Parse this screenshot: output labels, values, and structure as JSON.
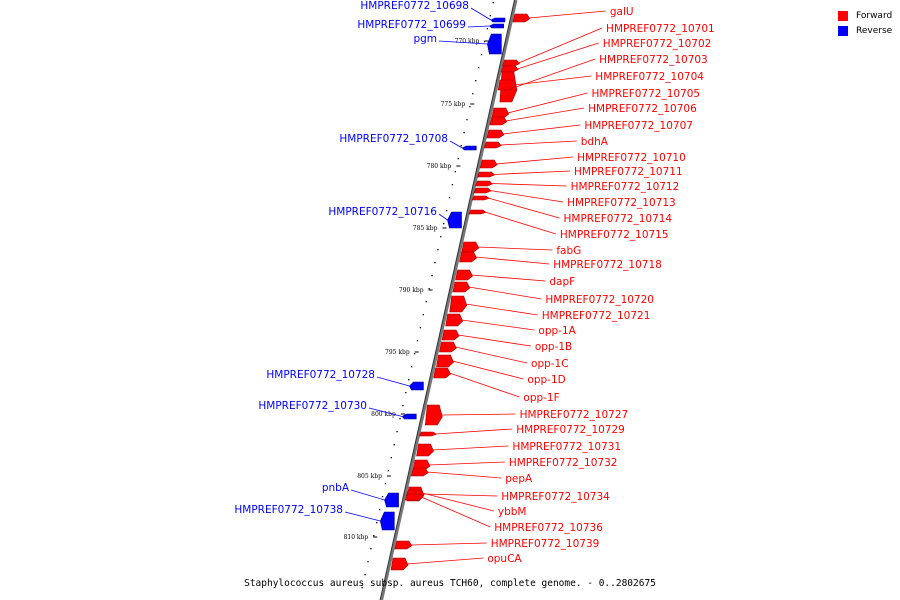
{
  "caption": "Staphylococcus aureus subsp. aureus TCH60, complete genome. - 0..2802675",
  "legend": [
    {
      "label": "Forward",
      "color": "#ff0000"
    },
    {
      "label": "Reverse",
      "color": "#0000ff"
    }
  ],
  "colors": {
    "forward": "#ff0000",
    "reverse": "#0000ff",
    "backbone": "#777777"
  },
  "ticks": [
    "770 kbp",
    "775 kbp",
    "780 kbp",
    "785 kbp",
    "790 kbp",
    "795 kbp",
    "800 kbp",
    "805 kbp",
    "810 kbp"
  ],
  "forward_labels": [
    "galU",
    "HMPREF0772_10701",
    "HMPREF0772_10702",
    "HMPREF0772_10703",
    "HMPREF0772_10704",
    "HMPREF0772_10705",
    "HMPREF0772_10706",
    "HMPREF0772_10707",
    "bdhA",
    "HMPREF0772_10710",
    "HMPREF0772_10711",
    "HMPREF0772_10712",
    "HMPREF0772_10713",
    "HMPREF0772_10714",
    "HMPREF0772_10715",
    "fabG",
    "HMPREF0772_10718",
    "dapF",
    "HMPREF0772_10720",
    "HMPREF0772_10721",
    "opp-1A",
    "opp-1B",
    "opp-1C",
    "opp-1D",
    "opp-1F",
    "HMPREF0772_10727",
    "HMPREF0772_10729",
    "HMPREF0772_10731",
    "HMPREF0772_10732",
    "pepA",
    "HMPREF0772_10734",
    "ybbM",
    "HMPREF0772_10736",
    "HMPREF0772_10739",
    "opuCA"
  ],
  "reverse_labels": [
    "HMPREF0772_10698",
    "HMPREF0772_10699",
    "pgm",
    "HMPREF0772_10708",
    "HMPREF0772_10716",
    "HMPREF0772_10728",
    "HMPREF0772_10730",
    "pnbA",
    "HMPREF0772_10738"
  ]
}
